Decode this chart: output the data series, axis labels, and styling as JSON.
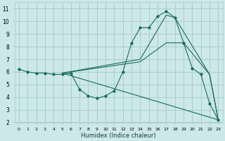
{
  "xlabel": "Humidex (Indice chaleur)",
  "ylabel": "",
  "bg_color": "#cce8e8",
  "grid_color": "#aacece",
  "line_color": "#1a6b60",
  "xlim": [
    -0.5,
    23.5
  ],
  "ylim": [
    2,
    11.5
  ],
  "xtick_labels": [
    "0",
    "1",
    "2",
    "3",
    "4",
    "5",
    "6",
    "7",
    "8",
    "9",
    "10",
    "11",
    "12",
    "13",
    "14",
    "15",
    "16",
    "17",
    "18",
    "19",
    "20",
    "21",
    "22",
    "23"
  ],
  "ytick_labels": [
    "2",
    "3",
    "4",
    "5",
    "6",
    "7",
    "8",
    "9",
    "10",
    "11"
  ],
  "yticks": [
    2,
    3,
    4,
    5,
    6,
    7,
    8,
    9,
    10,
    11
  ],
  "curves": [
    {
      "x": [
        0,
        1,
        2,
        3,
        4,
        5,
        6,
        7,
        8,
        9,
        10,
        11,
        12,
        13,
        14,
        15,
        16,
        17,
        18,
        19,
        20,
        21,
        22,
        23
      ],
      "y": [
        6.2,
        6.0,
        5.9,
        5.9,
        5.8,
        5.8,
        5.9,
        4.6,
        4.1,
        3.9,
        4.1,
        4.5,
        6.0,
        8.3,
        9.5,
        9.5,
        10.4,
        10.8,
        10.3,
        8.3,
        6.3,
        5.8,
        3.5,
        2.2
      ],
      "marker": true
    },
    {
      "x": [
        5,
        23
      ],
      "y": [
        5.9,
        2.2
      ],
      "marker": false
    },
    {
      "x": [
        5,
        14,
        17,
        18,
        22,
        23
      ],
      "y": [
        5.9,
        7.0,
        10.5,
        10.3,
        5.8,
        2.2
      ],
      "marker": false
    },
    {
      "x": [
        5,
        14,
        17,
        19,
        22,
        23
      ],
      "y": [
        5.9,
        6.8,
        8.3,
        8.3,
        5.8,
        2.2
      ],
      "marker": false
    }
  ]
}
